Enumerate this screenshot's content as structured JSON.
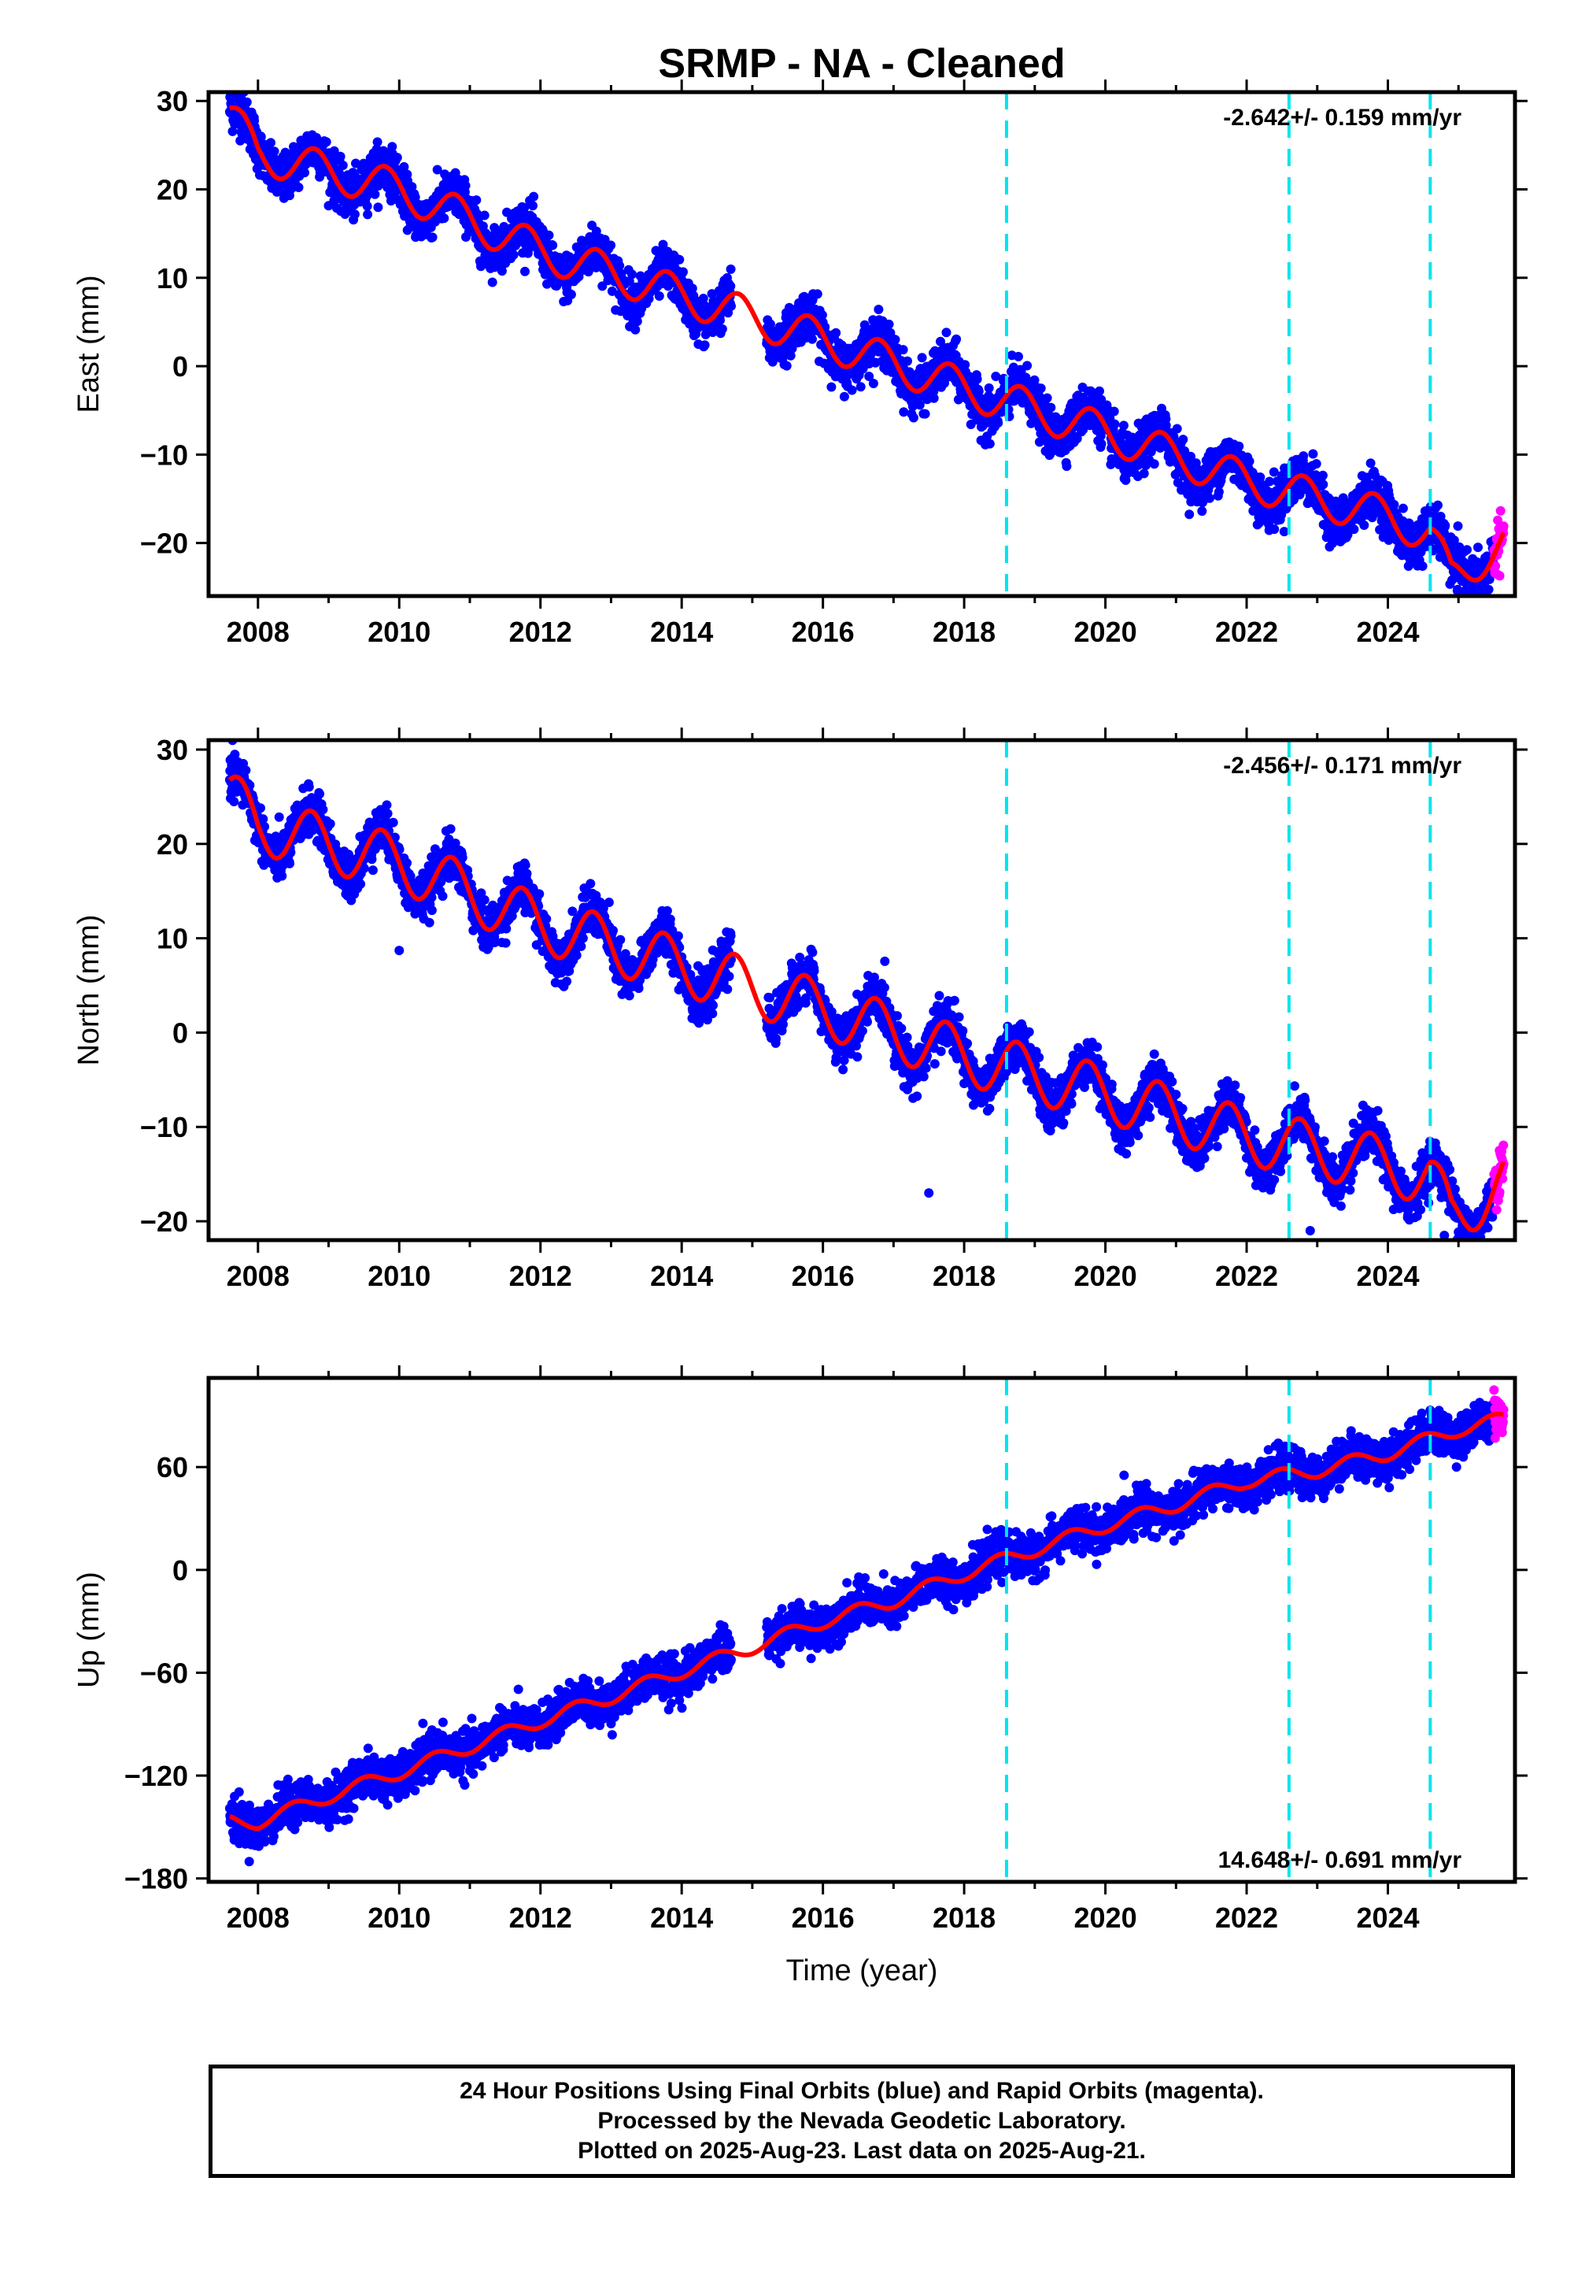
{
  "figure": {
    "title": "SRMP  - NA - Cleaned",
    "x_axis_label": "Time (year)",
    "colors": {
      "final": "#0000ff",
      "rapid": "#ff00ff",
      "model": "#ff0000",
      "steps": "#00e5ee",
      "frame": "#000000"
    }
  },
  "footer": {
    "line1": "24 Hour Positions Using Final Orbits (blue) and Rapid Orbits (magenta).",
    "line2": "Processed by the Nevada Geodetic Laboratory.",
    "line3": "Plotted on 2025-Aug-23. Last data on 2025-Aug-21."
  },
  "chart_data": [
    {
      "type": "scatter",
      "ylabel": "East (mm)",
      "rate_label": "-2.642+/- 0.159 mm/yr",
      "rate_position": "top-right",
      "xlim": [
        2007.3,
        2025.8
      ],
      "ylim": [
        -26,
        31
      ],
      "x_ticks": [
        2008,
        2010,
        2012,
        2014,
        2016,
        2018,
        2020,
        2022,
        2024
      ],
      "y_ticks": [
        -20,
        -10,
        0,
        10,
        20,
        30
      ],
      "x_tick_labels": [
        "2008",
        "2010",
        "2012",
        "2014",
        "2016",
        "2018",
        "2020",
        "2022",
        "2024"
      ],
      "y_tick_labels": [
        "−20",
        "−10",
        "0",
        "10",
        "20",
        "30"
      ],
      "data_start": 2007.6,
      "data_end": 2025.64,
      "rapid_start": 2025.5,
      "gap": [
        2014.7,
        2015.2
      ],
      "steps": [
        2018.6,
        2022.6,
        2024.6
      ],
      "model_anchors": [
        [
          2007.6,
          28.5
        ],
        [
          2008.0,
          24
        ],
        [
          2010.0,
          20
        ],
        [
          2012.0,
          13
        ],
        [
          2014.0,
          8
        ],
        [
          2016.0,
          3
        ],
        [
          2018.0,
          -2.5
        ],
        [
          2020.0,
          -7.5
        ],
        [
          2022.0,
          -13
        ],
        [
          2024.0,
          -17
        ],
        [
          2024.6,
          -19
        ],
        [
          2024.9,
          -24
        ],
        [
          2025.64,
          -20
        ]
      ],
      "seasonal_amplitude": 2.2,
      "seasonal_phase": 0.55,
      "scatter_sd": 1.3,
      "series": [
        {
          "name": "Final Orbits",
          "style": "points"
        },
        {
          "name": "Rapid Orbits",
          "style": "points"
        },
        {
          "style": "line"
        }
      ]
    },
    {
      "type": "scatter",
      "ylabel": "North (mm)",
      "rate_label": "-2.456+/- 0.171 mm/yr",
      "rate_position": "top-right",
      "xlim": [
        2007.3,
        2025.8
      ],
      "ylim": [
        -22,
        31
      ],
      "x_ticks": [
        2008,
        2010,
        2012,
        2014,
        2016,
        2018,
        2020,
        2022,
        2024
      ],
      "y_ticks": [
        -20,
        -10,
        0,
        10,
        20,
        30
      ],
      "x_tick_labels": [
        "2008",
        "2010",
        "2012",
        "2014",
        "2016",
        "2018",
        "2020",
        "2022",
        "2024"
      ],
      "y_tick_labels": [
        "−20",
        "−10",
        "0",
        "10",
        "20",
        "30"
      ],
      "data_start": 2007.6,
      "data_end": 2025.64,
      "rapid_start": 2025.5,
      "gap": [
        2014.7,
        2015.2
      ],
      "steps": [
        2018.6,
        2022.6,
        2024.6
      ],
      "model_anchors": [
        [
          2007.6,
          25
        ],
        [
          2008.0,
          22
        ],
        [
          2010.0,
          18
        ],
        [
          2012.0,
          11.5
        ],
        [
          2014.0,
          7
        ],
        [
          2016.0,
          2.5
        ],
        [
          2018.0,
          -2.5
        ],
        [
          2020.0,
          -6.5
        ],
        [
          2022.0,
          -11
        ],
        [
          2024.0,
          -14
        ],
        [
          2024.6,
          -15.5
        ],
        [
          2024.9,
          -19.5
        ],
        [
          2025.64,
          -16
        ]
      ],
      "seasonal_amplitude": 3.0,
      "seasonal_phase": 0.5,
      "scatter_sd": 1.2,
      "outliers": [
        [
          2010.0,
          8.7
        ],
        [
          2017.5,
          -17
        ],
        [
          2022.9,
          -21
        ],
        [
          2024.8,
          -21.5
        ]
      ],
      "series": [
        {
          "name": "Final Orbits",
          "style": "points"
        },
        {
          "name": "Rapid Orbits",
          "style": "points"
        },
        {
          "style": "line"
        }
      ]
    },
    {
      "type": "scatter",
      "ylabel": "Up (mm)",
      "rate_label": "14.648+/- 0.691 mm/yr",
      "rate_position": "bottom-right",
      "xlim": [
        2007.3,
        2025.8
      ],
      "ylim": [
        -182,
        112
      ],
      "x_ticks": [
        2008,
        2010,
        2012,
        2014,
        2016,
        2018,
        2020,
        2022,
        2024
      ],
      "y_ticks": [
        -180,
        -120,
        -60,
        0,
        60
      ],
      "x_tick_labels": [
        "2008",
        "2010",
        "2012",
        "2014",
        "2016",
        "2018",
        "2020",
        "2022",
        "2024"
      ],
      "y_tick_labels": [
        "−180",
        "−120",
        "−60",
        "0",
        "60"
      ],
      "data_start": 2007.6,
      "data_end": 2025.64,
      "rapid_start": 2025.5,
      "gap": [
        2014.7,
        2015.2
      ],
      "steps": [
        2018.6,
        2022.6,
        2024.6
      ],
      "model_anchors": [
        [
          2007.6,
          -147
        ],
        [
          2008.0,
          -147
        ],
        [
          2009.0,
          -132
        ],
        [
          2010.0,
          -118
        ],
        [
          2011.0,
          -103
        ],
        [
          2012.0,
          -88
        ],
        [
          2013.0,
          -74
        ],
        [
          2014.0,
          -59
        ],
        [
          2015.0,
          -45
        ],
        [
          2016.0,
          -30
        ],
        [
          2017.0,
          -18
        ],
        [
          2018.0,
          -2
        ],
        [
          2019.0,
          12
        ],
        [
          2020.0,
          26
        ],
        [
          2021.0,
          38
        ],
        [
          2022.0,
          52
        ],
        [
          2023.0,
          58
        ],
        [
          2024.0,
          68
        ],
        [
          2025.0,
          82
        ],
        [
          2025.64,
          88
        ]
      ],
      "seasonal_amplitude": 4.0,
      "seasonal_phase": 0.25,
      "scatter_sd": 6.0,
      "series": [
        {
          "name": "Final Orbits",
          "style": "points"
        },
        {
          "name": "Rapid Orbits",
          "style": "points"
        },
        {
          "style": "line"
        }
      ]
    }
  ]
}
